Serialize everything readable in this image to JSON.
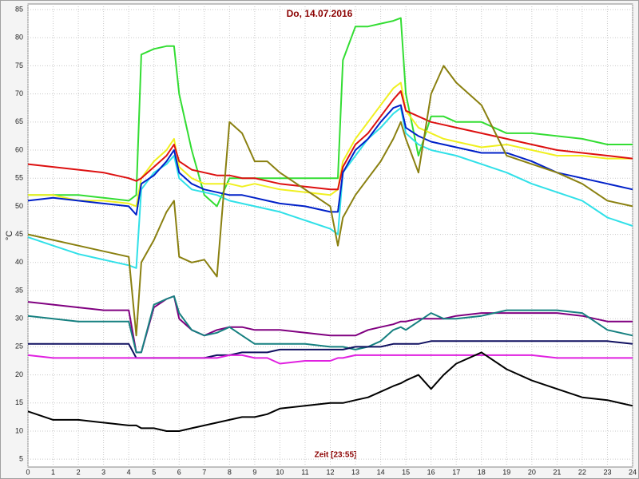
{
  "chart_data": {
    "type": "line",
    "title": "Do, 14.07.2016",
    "x_label": "Zeit [23:55]",
    "y_label": "°C",
    "xlim": [
      0,
      24
    ],
    "ylim": [
      3.6,
      86
    ],
    "xticks": [
      0,
      1,
      2,
      3,
      4,
      5,
      6,
      7,
      8,
      9,
      10,
      11,
      12,
      13,
      14,
      15,
      16,
      17,
      18,
      19,
      20,
      21,
      22,
      23,
      24
    ],
    "yticks": [
      5,
      10,
      15,
      20,
      25,
      30,
      35,
      40,
      45,
      50,
      55,
      60,
      65,
      70,
      75,
      80,
      85
    ],
    "grid": true,
    "x": [
      0,
      1,
      2,
      3,
      4,
      4.3,
      4.5,
      5,
      5.5,
      5.8,
      6,
      6.5,
      7,
      7.5,
      8,
      8.5,
      9,
      9.5,
      10,
      11,
      12,
      12.3,
      12.5,
      13,
      13.5,
      14,
      14.5,
      14.8,
      15,
      15.5,
      16,
      16.5,
      17,
      18,
      19,
      20,
      21,
      22,
      23,
      24
    ],
    "series": [
      {
        "color": "#33dd33",
        "values": [
          52,
          52,
          52,
          51.5,
          51,
          52,
          77,
          78,
          78.5,
          78.5,
          70,
          60,
          52,
          50,
          55,
          55,
          55,
          55,
          55,
          55,
          55,
          55,
          76,
          82,
          82,
          82.5,
          83,
          83.5,
          70,
          59,
          66,
          66,
          65,
          65,
          63,
          63,
          62.5,
          62,
          61,
          61
        ]
      },
      {
        "color": "#f0f020",
        "values": [
          52,
          52,
          51,
          51,
          50.5,
          50,
          55,
          58,
          60,
          62,
          57,
          55,
          54,
          54,
          54,
          53.5,
          54,
          53.5,
          53,
          52.5,
          52,
          53,
          58,
          62,
          65,
          68,
          71,
          72,
          67,
          64,
          63,
          62,
          61.5,
          60.5,
          61,
          60,
          59,
          59,
          58.5,
          58.5
        ]
      },
      {
        "color": "#dd1010",
        "values": [
          57.5,
          57,
          56.5,
          56,
          55,
          54.5,
          55,
          57,
          59,
          61,
          58,
          56.5,
          56,
          55.5,
          55.5,
          55,
          55,
          54.5,
          54,
          53.5,
          53,
          53,
          57,
          61,
          63,
          66,
          69,
          70.5,
          67,
          66,
          65,
          64.5,
          64,
          63,
          62,
          61,
          60,
          59.5,
          59,
          58.5
        ]
      },
      {
        "color": "#30e0e8",
        "values": [
          44.5,
          43,
          41.5,
          40.5,
          39.5,
          39,
          53,
          56,
          57.5,
          59,
          55,
          53,
          52.5,
          52,
          51,
          50.5,
          50,
          49.5,
          49,
          47.5,
          46,
          45,
          56,
          59,
          62,
          64,
          66.5,
          67.5,
          63,
          61,
          60,
          59.5,
          59,
          57.5,
          56,
          54,
          52.5,
          51,
          48,
          46.5
        ]
      },
      {
        "color": "#0020c8",
        "values": [
          51,
          51.5,
          51,
          50.5,
          50,
          48.5,
          54,
          55.5,
          58,
          60,
          56,
          54,
          53,
          52.5,
          52,
          52,
          51.5,
          51,
          50.5,
          50,
          49,
          49,
          56,
          60,
          62,
          65,
          67.5,
          68,
          64,
          62.5,
          61.5,
          61,
          60.5,
          59.5,
          59.5,
          58,
          56,
          55,
          54,
          53
        ]
      },
      {
        "color": "#8a8010",
        "values": [
          45,
          44,
          43,
          42,
          41,
          27,
          40,
          44,
          49,
          51,
          41,
          40,
          40.5,
          37.5,
          65,
          63,
          58,
          58,
          56,
          53,
          50,
          43,
          48,
          52,
          55,
          58,
          62,
          65,
          62,
          56,
          70,
          75,
          72,
          68,
          59,
          57.5,
          56,
          54,
          51,
          50
        ]
      },
      {
        "color": "#800080",
        "values": [
          33,
          32.5,
          32,
          31.5,
          31.5,
          24,
          24,
          32,
          33.5,
          34,
          30,
          28,
          27,
          28,
          28.5,
          28.5,
          28,
          28,
          28,
          27.5,
          27,
          27,
          27,
          27,
          28,
          28.5,
          29,
          29.5,
          29.5,
          30,
          30,
          30,
          30.5,
          31,
          31,
          31,
          31,
          30.5,
          29.5,
          29.5
        ]
      },
      {
        "color": "#168080",
        "values": [
          30.5,
          30,
          29.5,
          29.5,
          29.5,
          24,
          24,
          32.5,
          33.5,
          34,
          31,
          28,
          27,
          27.5,
          28.5,
          27,
          25.5,
          25.5,
          25.5,
          25.5,
          25,
          25,
          25,
          24.5,
          25,
          26,
          28,
          28.5,
          28,
          29.5,
          31,
          30,
          30,
          30.5,
          31.5,
          31.5,
          31.5,
          31,
          28,
          27
        ]
      },
      {
        "color": "#101060",
        "values": [
          25.5,
          25.5,
          25.5,
          25.5,
          25.5,
          23,
          23,
          23,
          23,
          23,
          23,
          23,
          23,
          23.5,
          23.5,
          24,
          24,
          24,
          24.5,
          24.5,
          24.5,
          24.5,
          24.5,
          25,
          25,
          25,
          25.5,
          25.5,
          25.5,
          25.5,
          26,
          26,
          26,
          26,
          26,
          26,
          26,
          26,
          26,
          25.5
        ]
      },
      {
        "color": "#e020e0",
        "values": [
          23.5,
          23,
          23,
          23,
          23,
          23,
          23,
          23,
          23,
          23,
          23,
          23,
          23,
          23,
          23.5,
          23.5,
          23,
          23,
          22,
          22.5,
          22.5,
          23,
          23,
          23.5,
          23.5,
          23.5,
          23.5,
          23.5,
          23.5,
          23.5,
          23.5,
          23.5,
          23.5,
          23.5,
          23.5,
          23.5,
          23,
          23,
          23,
          23
        ]
      },
      {
        "color": "#000000",
        "values": [
          13.5,
          12,
          12,
          11.5,
          11,
          11,
          10.5,
          10.5,
          10,
          10,
          10,
          10.5,
          11,
          11.5,
          12,
          12.5,
          12.5,
          13,
          14,
          14.5,
          15,
          15,
          15,
          15.5,
          16,
          17,
          18,
          18.5,
          19,
          20,
          17.5,
          20,
          22,
          24,
          21,
          19,
          17.5,
          16,
          15.5,
          14.5
        ]
      }
    ]
  }
}
